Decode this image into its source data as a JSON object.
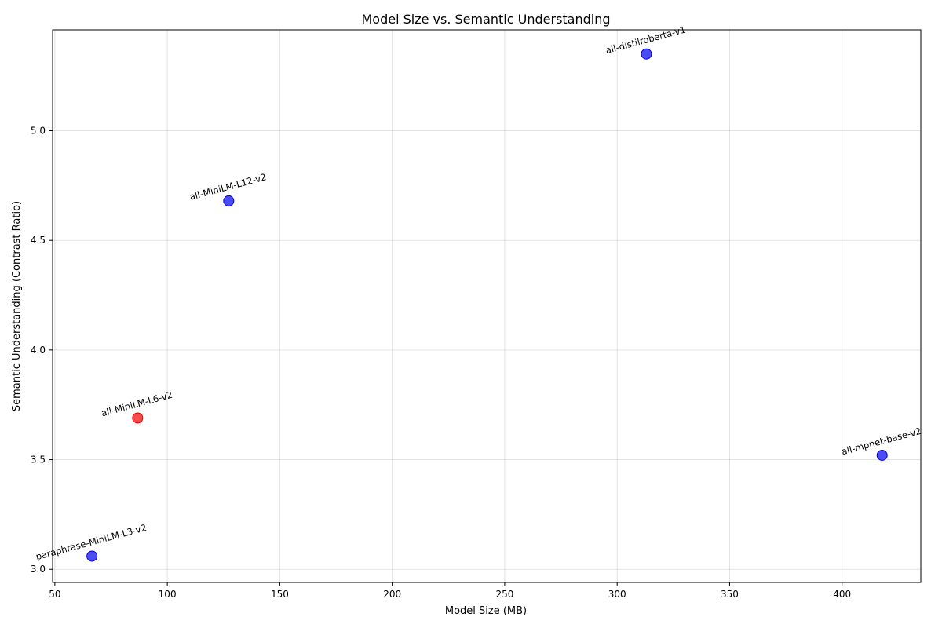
{
  "chart_data": {
    "type": "scatter",
    "title": "Model Size vs. Semantic Understanding",
    "xlabel": "Model Size (MB)",
    "ylabel": "Semantic Understanding (Contrast Ratio)",
    "xlim": [
      49,
      435
    ],
    "ylim": [
      2.94,
      5.46
    ],
    "xticks": [
      50,
      100,
      150,
      200,
      250,
      300,
      350,
      400
    ],
    "yticks": [
      3.0,
      3.5,
      4.0,
      4.5,
      5.0
    ],
    "xtick_labels": [
      "50",
      "100",
      "150",
      "200",
      "250",
      "300",
      "350",
      "400"
    ],
    "ytick_labels": [
      "3.0",
      "3.5",
      "4.0",
      "4.5",
      "5.0"
    ],
    "grid": true,
    "points": [
      {
        "label": "paraphrase-MiniLM-L3-v2",
        "x": 66.5,
        "y": 3.06,
        "color": "#0000ee"
      },
      {
        "label": "all-MiniLM-L6-v2",
        "x": 86.8,
        "y": 3.69,
        "color": "#ee0000"
      },
      {
        "label": "all-MiniLM-L12-v2",
        "x": 127.3,
        "y": 4.68,
        "color": "#0000ee"
      },
      {
        "label": "all-distilroberta-v1",
        "x": 313.0,
        "y": 5.35,
        "color": "#0000ee"
      },
      {
        "label": "all-mpnet-base-v2",
        "x": 417.8,
        "y": 3.52,
        "color": "#0000ee"
      }
    ]
  }
}
